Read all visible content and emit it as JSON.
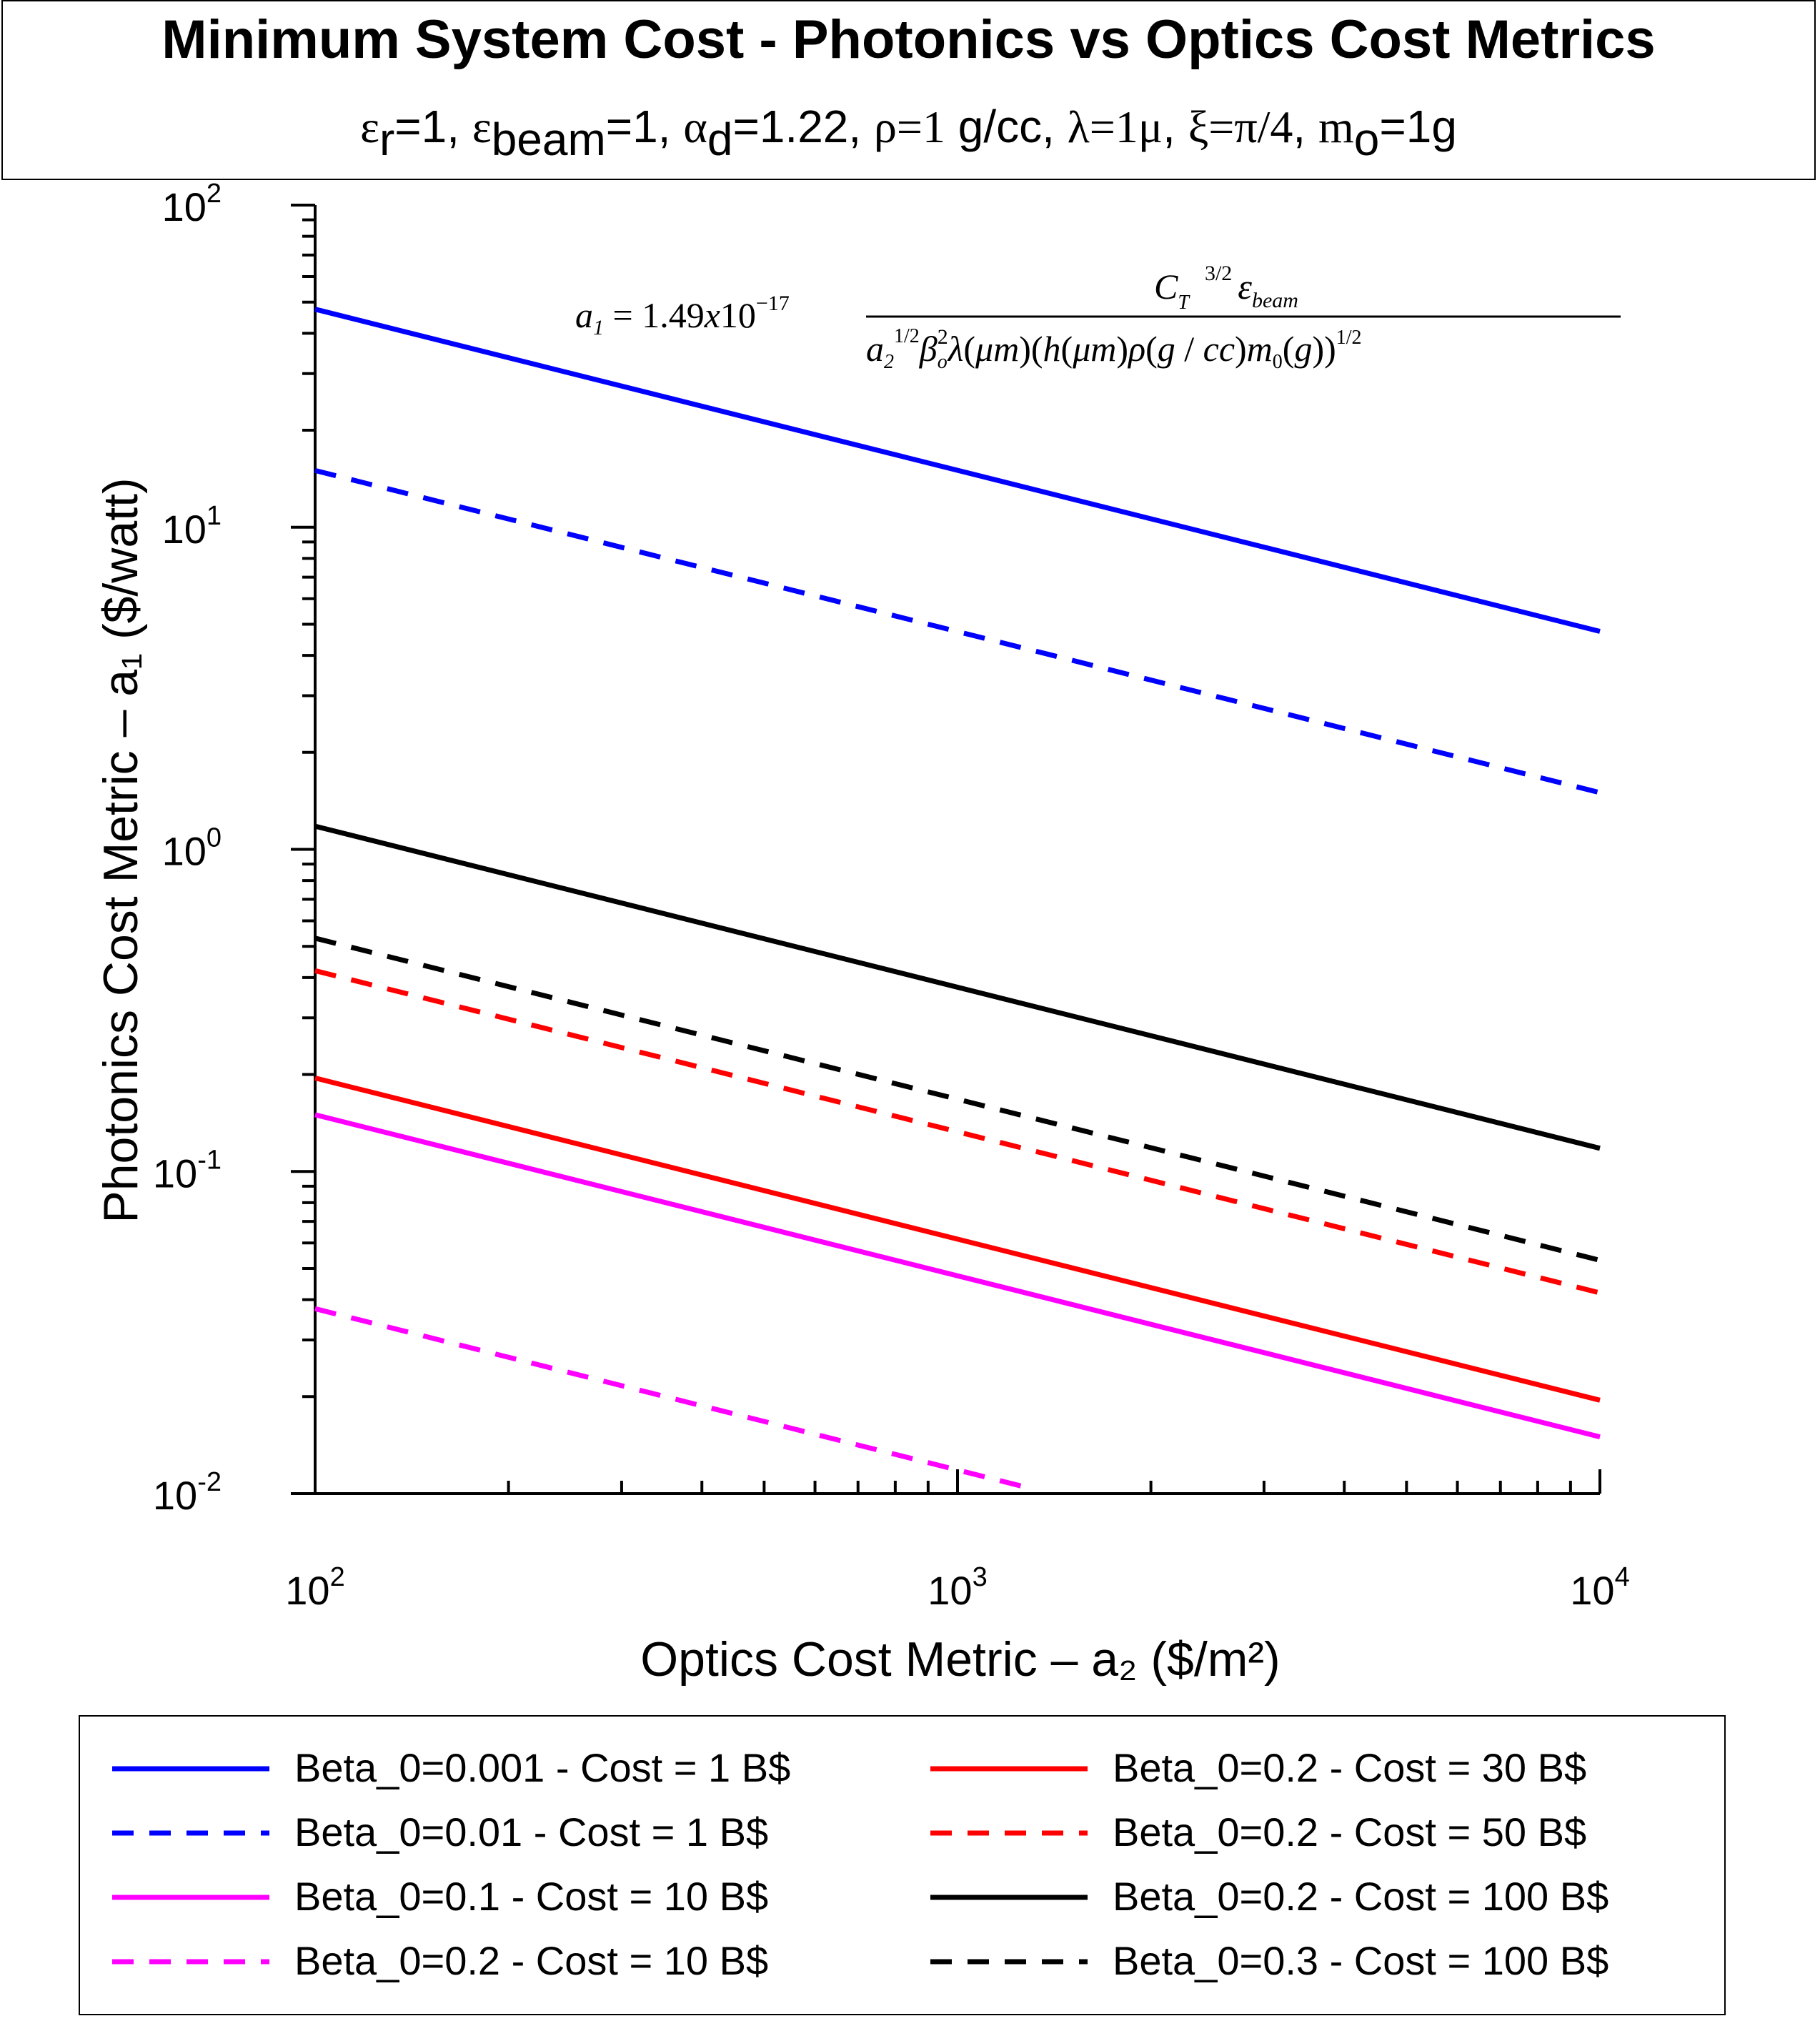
{
  "title": {
    "line1": "Minimum System Cost - Photonics vs Optics Cost Metrics",
    "params": [
      {
        "sym": "ε",
        "sub": "r",
        "rest": "=1, "
      },
      {
        "sym": "ε",
        "sub": "beam",
        "rest": "=1, "
      },
      {
        "sym": "α",
        "sub": "d",
        "rest": "=1.22, "
      },
      {
        "sym": "ρ=1",
        "sub": "",
        "rest": " g/cc, "
      },
      {
        "sym": "λ=1μ",
        "sub": "",
        "rest": ", "
      },
      {
        "sym": "ξ=π/4",
        "sub": "",
        "rest": ", "
      },
      {
        "sym": "m",
        "sub": "o",
        "rest": "=1g"
      }
    ]
  },
  "chart_data": {
    "type": "line",
    "x_scale": "log",
    "y_scale": "log",
    "xlim": [
      100,
      10000
    ],
    "ylim": [
      0.01,
      100
    ],
    "xlabel": "Optics Cost Metric – a₂ ($/m²)",
    "ylabel": "Photonics Cost Metric – a₁ ($/watt)",
    "xticks": [
      {
        "base": "10",
        "exp": "2"
      },
      {
        "base": "10",
        "exp": "3"
      },
      {
        "base": "10",
        "exp": "4"
      }
    ],
    "yticks": [
      {
        "base": "10",
        "exp": "-2"
      },
      {
        "base": "10",
        "exp": "-1"
      },
      {
        "base": "10",
        "exp": "0"
      },
      {
        "base": "10",
        "exp": "1"
      },
      {
        "base": "10",
        "exp": "2"
      }
    ],
    "formula": {
      "lhs": "a₁ = 1.49x10⁻¹⁷",
      "numerator": "C_T^{3/2} ε_beam",
      "denominator": "a₂^{1/2} β_o² λ(μm)(h(μm)ρ(g/cc)m₀(g))^{1/2}"
    },
    "series": [
      {
        "name": "Beta_0=0.001 - Cost = 1 B$",
        "color": "#0000ff",
        "dash": false,
        "x": [
          100,
          10000
        ],
        "y": [
          47.5,
          4.75
        ]
      },
      {
        "name": "Beta_0=0.01 - Cost = 1 B$",
        "color": "#0000ff",
        "dash": true,
        "x": [
          100,
          10000
        ],
        "y": [
          15.0,
          1.5
        ]
      },
      {
        "name": "Beta_0=0.1 - Cost = 10 B$",
        "color": "#ff00ff",
        "dash": false,
        "x": [
          100,
          10000
        ],
        "y": [
          0.15,
          0.015
        ]
      },
      {
        "name": "Beta_0=0.2 - Cost = 10 B$",
        "color": "#ff00ff",
        "dash": true,
        "x": [
          100,
          1320
        ],
        "y": [
          0.0375,
          0.0103
        ]
      },
      {
        "name": "Beta_0=0.2 - Cost = 30 B$",
        "color": "#ff0000",
        "dash": false,
        "x": [
          100,
          10000
        ],
        "y": [
          0.195,
          0.0195
        ]
      },
      {
        "name": "Beta_0=0.2 - Cost = 50 B$",
        "color": "#ff0000",
        "dash": true,
        "x": [
          100,
          10000
        ],
        "y": [
          0.42,
          0.042
        ]
      },
      {
        "name": "Beta_0=0.2 - Cost = 100 B$",
        "color": "#000000",
        "dash": false,
        "x": [
          100,
          10000
        ],
        "y": [
          1.18,
          0.118
        ]
      },
      {
        "name": "Beta_0=0.3 - Cost = 100 B$",
        "color": "#000000",
        "dash": true,
        "x": [
          100,
          10000
        ],
        "y": [
          0.53,
          0.053
        ]
      }
    ],
    "legend_position": "bottom",
    "grid": false
  },
  "legend": {
    "left_column": [
      0,
      1,
      2,
      3
    ],
    "right_column": [
      4,
      5,
      6,
      7
    ]
  }
}
